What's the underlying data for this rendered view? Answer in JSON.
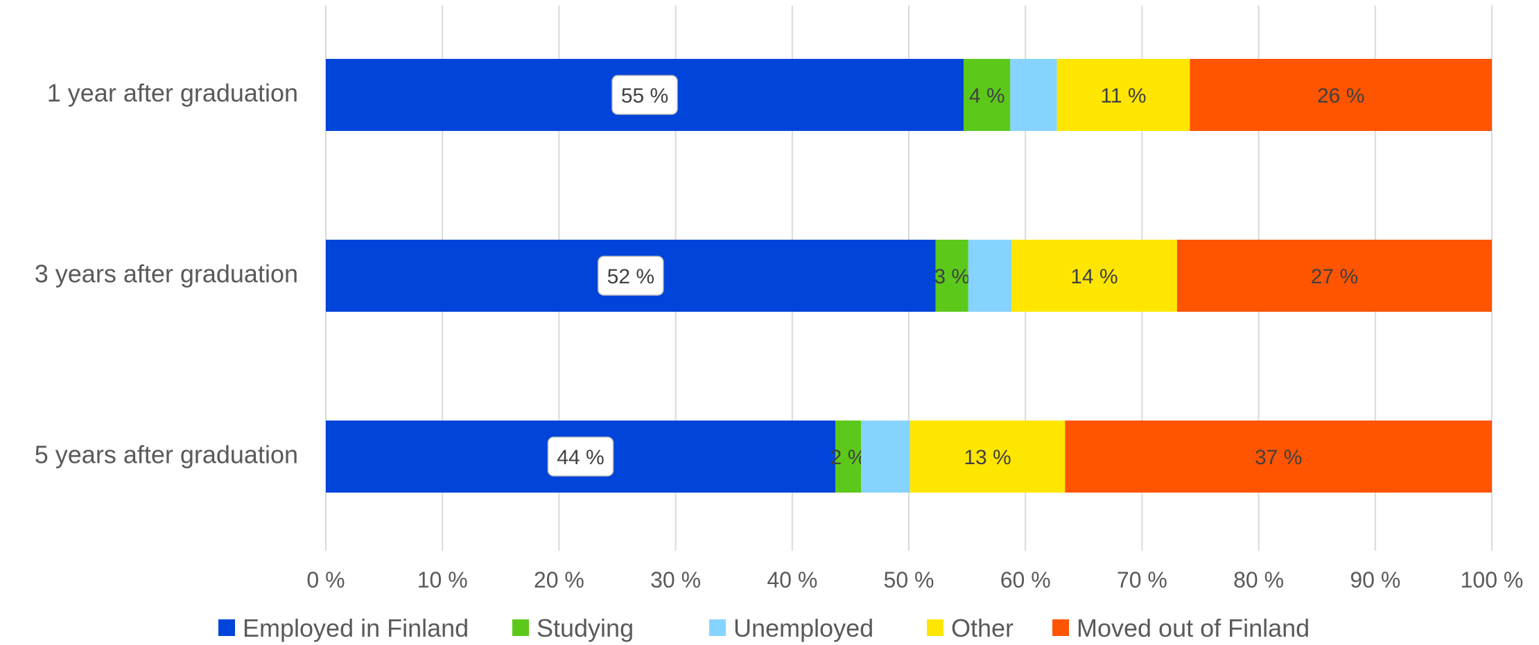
{
  "chart_data": {
    "type": "bar",
    "orientation": "horizontal",
    "stacked": true,
    "categories": [
      "1 year after graduation",
      "3 years after graduation",
      "5 years after graduation"
    ],
    "series": [
      {
        "name": "Employed in Finland",
        "color": "#0044D9",
        "values": [
          54.7,
          52.3,
          43.7
        ],
        "labels": [
          "55 %",
          "52 %",
          "44 %"
        ],
        "boxed_labels": true
      },
      {
        "name": "Studying",
        "color": "#5CC91A",
        "values": [
          4.0,
          2.8,
          2.2
        ],
        "labels": [
          "4 %",
          "3 %",
          "2 %"
        ]
      },
      {
        "name": "Unemployed",
        "color": "#87D3FF",
        "values": [
          4.0,
          3.7,
          4.2
        ],
        "labels": [
          "",
          "",
          ""
        ]
      },
      {
        "name": "Other",
        "color": "#FFE600",
        "values": [
          11.4,
          14.2,
          13.3
        ],
        "labels": [
          "11 %",
          "14 %",
          "13 %"
        ]
      },
      {
        "name": "Moved out of Finland",
        "color": "#FF5400",
        "values": [
          25.9,
          27.0,
          36.6
        ],
        "labels": [
          "26 %",
          "27 %",
          "37 %"
        ]
      }
    ],
    "x_ticks": [
      "0 %",
      "10 %",
      "20 %",
      "30 %",
      "40 %",
      "50 %",
      "60 %",
      "70 %",
      "80 %",
      "90 %",
      "100 %"
    ],
    "xlim": [
      0,
      100
    ],
    "grid": "vertical",
    "legend_position": "bottom",
    "title": "",
    "xlabel": "",
    "ylabel": ""
  }
}
